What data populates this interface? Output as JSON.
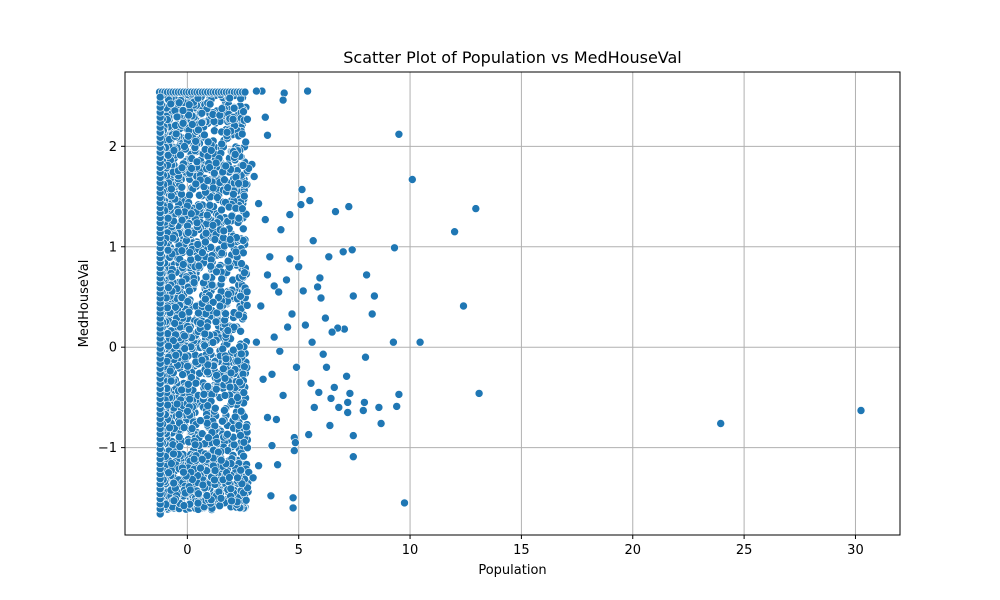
{
  "chart_data": {
    "type": "scatter",
    "title": "Scatter Plot of Population vs MedHouseVal",
    "xlabel": "Population",
    "ylabel": "MedHouseVal",
    "xlim": [
      -2.8,
      32.0
    ],
    "ylim": [
      -1.87,
      2.74
    ],
    "xticks": [
      0,
      5,
      10,
      15,
      20,
      25,
      30
    ],
    "yticks": [
      -1,
      0,
      1,
      2
    ],
    "xtick_labels": [
      "0",
      "5",
      "10",
      "15",
      "20",
      "25",
      "30"
    ],
    "ytick_labels": [
      "−1",
      "0",
      "1",
      "2"
    ],
    "grid": true,
    "point_color": "#1f77b4",
    "x_cap": 2.54,
    "points": [
      [
        30.25,
        -0.63
      ],
      [
        23.95,
        -0.76
      ],
      [
        13.1,
        -0.46
      ],
      [
        12.95,
        1.38
      ],
      [
        12.4,
        0.41
      ],
      [
        12.0,
        1.15
      ],
      [
        10.45,
        0.05
      ],
      [
        10.1,
        1.67
      ],
      [
        9.75,
        -1.55
      ],
      [
        9.5,
        2.12
      ],
      [
        9.5,
        -0.47
      ],
      [
        9.4,
        -0.59
      ],
      [
        9.3,
        0.99
      ],
      [
        9.25,
        0.05
      ],
      [
        8.7,
        -0.76
      ],
      [
        8.6,
        -0.6
      ],
      [
        8.4,
        0.51
      ],
      [
        8.3,
        0.33
      ],
      [
        8.05,
        0.72
      ],
      [
        8.0,
        -0.1
      ],
      [
        7.95,
        -0.55
      ],
      [
        7.9,
        -0.63
      ],
      [
        7.45,
        -1.09
      ],
      [
        7.45,
        -0.88
      ],
      [
        7.45,
        0.51
      ],
      [
        7.4,
        0.97
      ],
      [
        7.3,
        -0.46
      ],
      [
        7.25,
        1.4
      ],
      [
        7.2,
        -0.55
      ],
      [
        7.2,
        -0.65
      ],
      [
        7.15,
        -0.29
      ],
      [
        7.05,
        0.18
      ],
      [
        7.0,
        0.95
      ],
      [
        6.75,
        0.19
      ],
      [
        6.65,
        1.35
      ],
      [
        6.6,
        -0.4
      ],
      [
        6.45,
        -0.51
      ],
      [
        6.4,
        -0.78
      ],
      [
        6.35,
        0.9
      ],
      [
        6.25,
        -0.2
      ],
      [
        6.1,
        -0.07
      ],
      [
        6.0,
        0.49
      ],
      [
        5.95,
        0.69
      ],
      [
        5.9,
        -0.45
      ],
      [
        5.85,
        0.6
      ],
      [
        5.65,
        1.06
      ],
      [
        5.55,
        -0.36
      ],
      [
        5.5,
        1.46
      ],
      [
        5.45,
        -0.87
      ],
      [
        5.4,
        2.55
      ],
      [
        5.15,
        1.57
      ],
      [
        5.0,
        0.8
      ],
      [
        4.9,
        -0.2
      ],
      [
        4.8,
        -0.9
      ],
      [
        4.8,
        -1.03
      ],
      [
        4.75,
        -1.5
      ],
      [
        4.75,
        -1.6
      ],
      [
        4.6,
        0.88
      ],
      [
        4.45,
        0.67
      ],
      [
        4.35,
        2.53
      ],
      [
        4.3,
        2.46
      ],
      [
        4.15,
        -0.04
      ],
      [
        4.05,
        -1.17
      ],
      [
        3.8,
        -0.98
      ],
      [
        3.75,
        -1.48
      ],
      [
        3.6,
        2.11
      ],
      [
        3.5,
        2.29
      ],
      [
        3.35,
        2.55
      ],
      [
        3.1,
        2.55
      ],
      [
        4.85,
        -0.95
      ],
      [
        5.2,
        0.56
      ],
      [
        5.3,
        0.22
      ],
      [
        5.7,
        -0.6
      ],
      [
        6.5,
        0.15
      ],
      [
        6.8,
        -0.6
      ],
      [
        4.6,
        1.32
      ],
      [
        5.1,
        1.42
      ],
      [
        6.2,
        0.29
      ],
      [
        4.2,
        1.17
      ],
      [
        4.7,
        0.33
      ],
      [
        3.9,
        0.1
      ],
      [
        4.3,
        -0.48
      ],
      [
        5.6,
        0.05
      ],
      [
        3.9,
        0.61
      ],
      [
        4.1,
        0.55
      ],
      [
        3.7,
        0.9
      ],
      [
        3.5,
        1.27
      ],
      [
        3.2,
        1.43
      ],
      [
        3.0,
        1.7
      ],
      [
        2.9,
        1.82
      ],
      [
        2.75,
        1.78
      ],
      [
        2.5,
        1.81
      ],
      [
        2.3,
        1.63
      ],
      [
        2.15,
        1.92
      ],
      [
        3.6,
        0.72
      ],
      [
        3.3,
        0.41
      ],
      [
        3.1,
        0.05
      ],
      [
        3.4,
        -0.32
      ],
      [
        3.6,
        -0.7
      ],
      [
        3.8,
        -0.27
      ],
      [
        4.5,
        0.2
      ],
      [
        4.0,
        -0.72
      ],
      [
        3.2,
        -1.18
      ],
      [
        2.95,
        -1.3
      ],
      [
        2.7,
        -1.4
      ],
      [
        2.45,
        -1.36
      ],
      [
        2.25,
        -1.3
      ],
      [
        1.95,
        -1.41
      ],
      [
        2.1,
        2.38
      ],
      [
        1.9,
        2.48
      ],
      [
        2.05,
        2.27
      ]
    ]
  }
}
